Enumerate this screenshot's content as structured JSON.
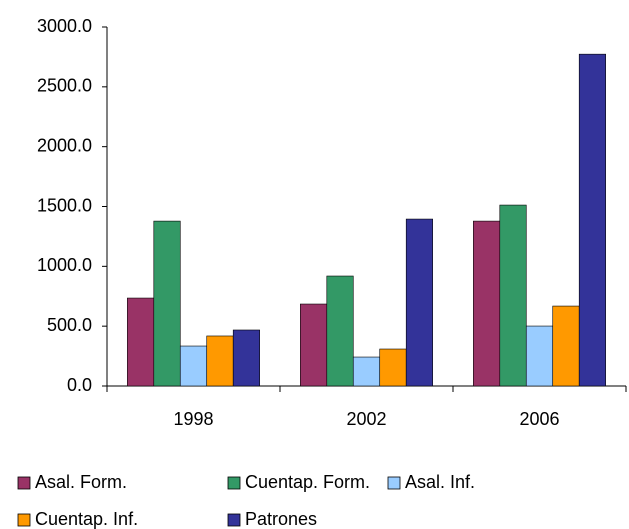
{
  "chart_data": {
    "type": "bar",
    "categories": [
      "1998",
      "2002",
      "2006"
    ],
    "series": [
      {
        "name": "Asal. Form.",
        "color": "#993366",
        "values": [
          735,
          685,
          1378
        ]
      },
      {
        "name": "Cuentap. Form.",
        "color": "#339966",
        "values": [
          1378,
          919,
          1512
        ]
      },
      {
        "name": "Asal. Inf.",
        "color": "#99ccff",
        "values": [
          334,
          242,
          501
        ]
      },
      {
        "name": "Cuentap. Inf.",
        "color": "#ff9900",
        "values": [
          418,
          309,
          668
        ]
      },
      {
        "name": "Patrones",
        "color": "#333399",
        "values": [
          468,
          1395,
          2773
        ]
      }
    ],
    "ylim": [
      0,
      3000
    ],
    "yticks": [
      {
        "value": 0,
        "label": "0.0"
      },
      {
        "value": 500,
        "label": "500.0"
      },
      {
        "value": 1000,
        "label": "1000.0"
      },
      {
        "value": 1500,
        "label": "1500.0"
      },
      {
        "value": 2000,
        "label": "2000.0"
      },
      {
        "value": 2500,
        "label": "2500.0"
      },
      {
        "value": 3000,
        "label": "3000.0"
      }
    ],
    "grid": false,
    "legend": "bottom"
  }
}
